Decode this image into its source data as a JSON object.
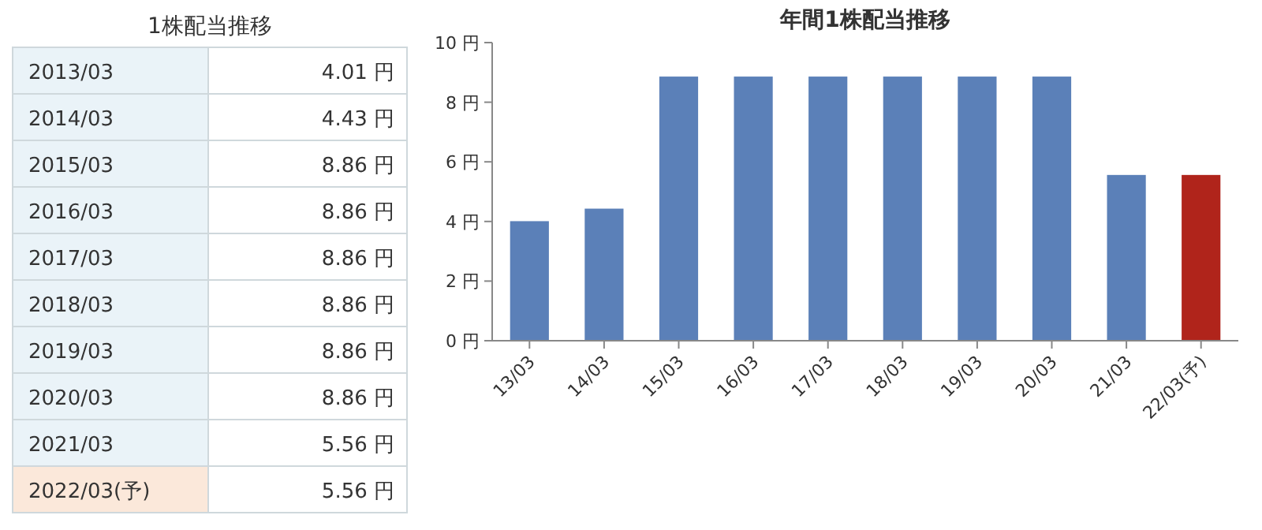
{
  "chart_data": [
    {
      "type": "other",
      "title": "1株配当推移",
      "annotations": [
        "2013/03",
        "4.01 円",
        "2014/03",
        "4.43 円",
        "2015/03",
        "8.86 円",
        "2016/03",
        "8.86 円",
        "2017/03",
        "8.86 円",
        "2018/03",
        "8.86 円",
        "2019/03",
        "8.86 円",
        "2020/03",
        "8.86 円",
        "2021/03",
        "5.56 円",
        "2022/03(予)",
        "5.56 円"
      ]
    },
    {
      "type": "bar",
      "title": "年間1株配当推移",
      "categories": [
        "13/03",
        "14/03",
        "15/03",
        "16/03",
        "17/03",
        "18/03",
        "19/03",
        "20/03",
        "21/03",
        "22/03(予)"
      ],
      "values": [
        4.01,
        4.43,
        8.86,
        8.86,
        8.86,
        8.86,
        8.86,
        8.86,
        5.56,
        5.56
      ],
      "colors": [
        "#5b80b8",
        "#5b80b8",
        "#5b80b8",
        "#5b80b8",
        "#5b80b8",
        "#5b80b8",
        "#5b80b8",
        "#5b80b8",
        "#5b80b8",
        "#b0241b"
      ],
      "ylim": [
        0,
        10
      ],
      "yticks": [
        {
          "value": 0,
          "label": "0 円"
        },
        {
          "value": 2,
          "label": "2 円"
        },
        {
          "value": 4,
          "label": "4 円"
        },
        {
          "value": 6,
          "label": "6 円"
        },
        {
          "value": 8,
          "label": "8 円"
        },
        {
          "value": 10,
          "label": "10 円"
        }
      ]
    }
  ]
}
